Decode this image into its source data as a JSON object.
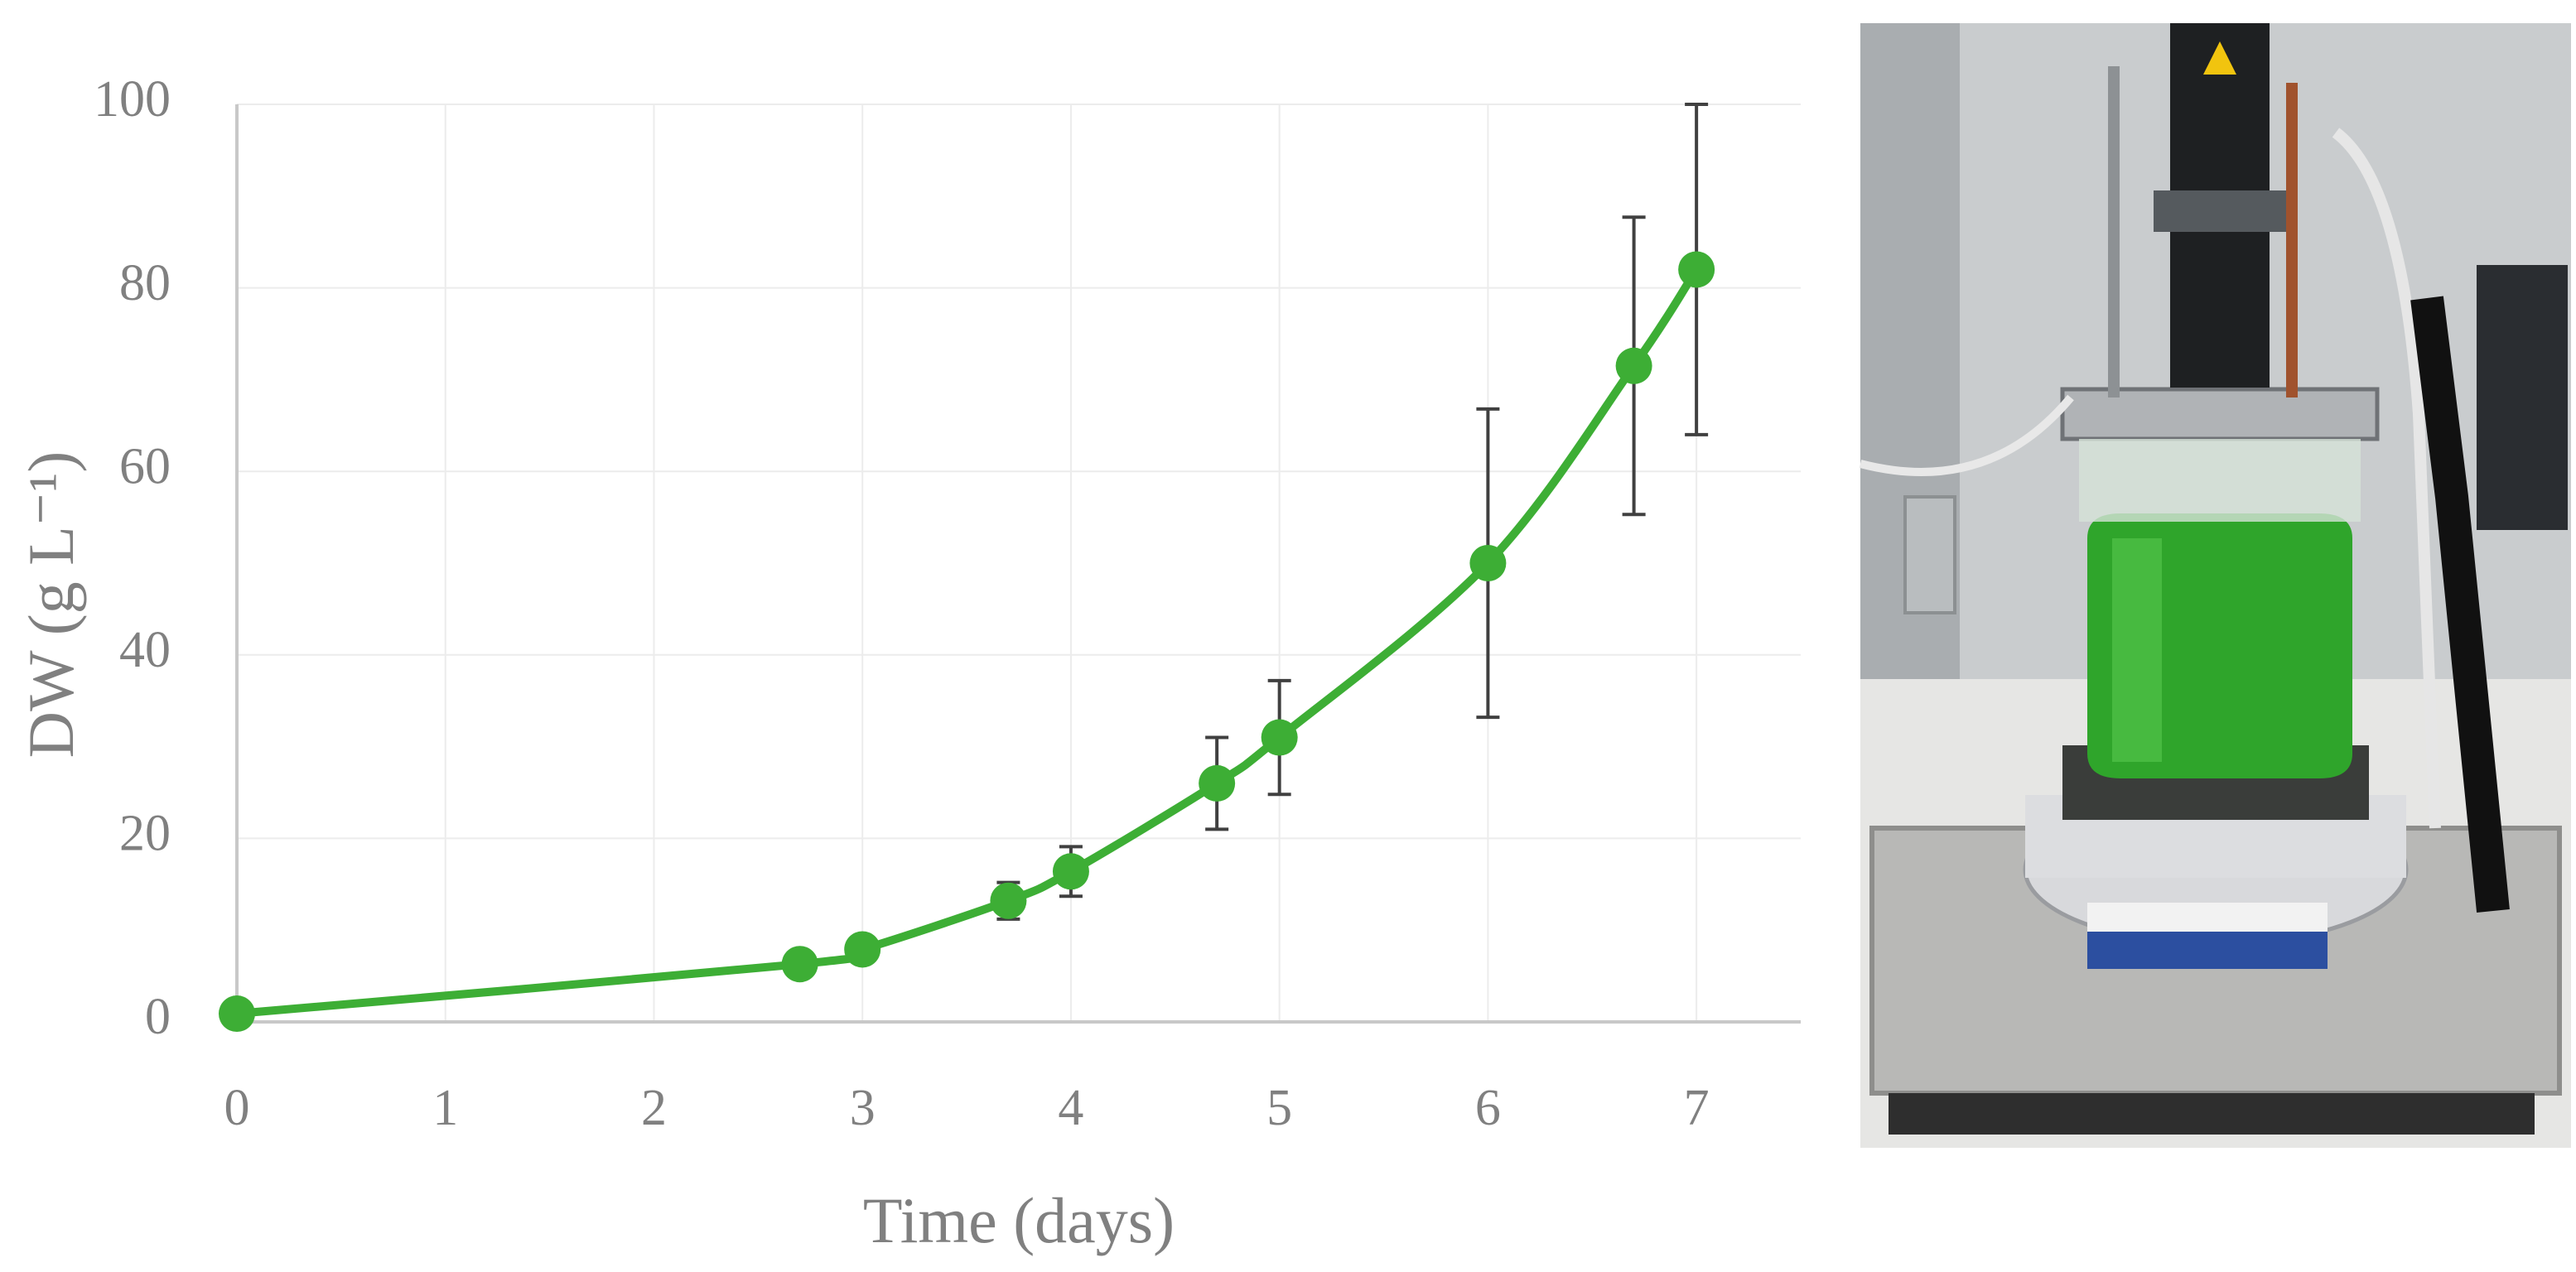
{
  "chart_data": {
    "type": "line",
    "x_label": "Time (days)",
    "y_label": "DW (g L⁻¹)",
    "x": [
      0,
      2.7,
      3,
      3.7,
      4,
      4.7,
      5,
      6,
      6.7,
      7
    ],
    "series": [
      {
        "color": "#3dae35",
        "values": [
          0.9,
          6.3,
          7.9,
          13.2,
          16.4,
          26.0,
          31.0,
          50.0,
          71.5,
          82.0
        ],
        "errors": [
          null,
          null,
          null,
          2.0,
          2.7,
          5.0,
          6.2,
          16.8,
          16.2,
          18.0
        ]
      }
    ],
    "error_color": "#404040",
    "xlim": [
      0,
      7.5
    ],
    "ylim": [
      0,
      100
    ],
    "xticks": [
      0,
      1,
      2,
      3,
      4,
      5,
      6,
      7
    ],
    "yticks": [
      0,
      20,
      40,
      60,
      80,
      100
    ],
    "grid": true,
    "smooth": true
  }
}
